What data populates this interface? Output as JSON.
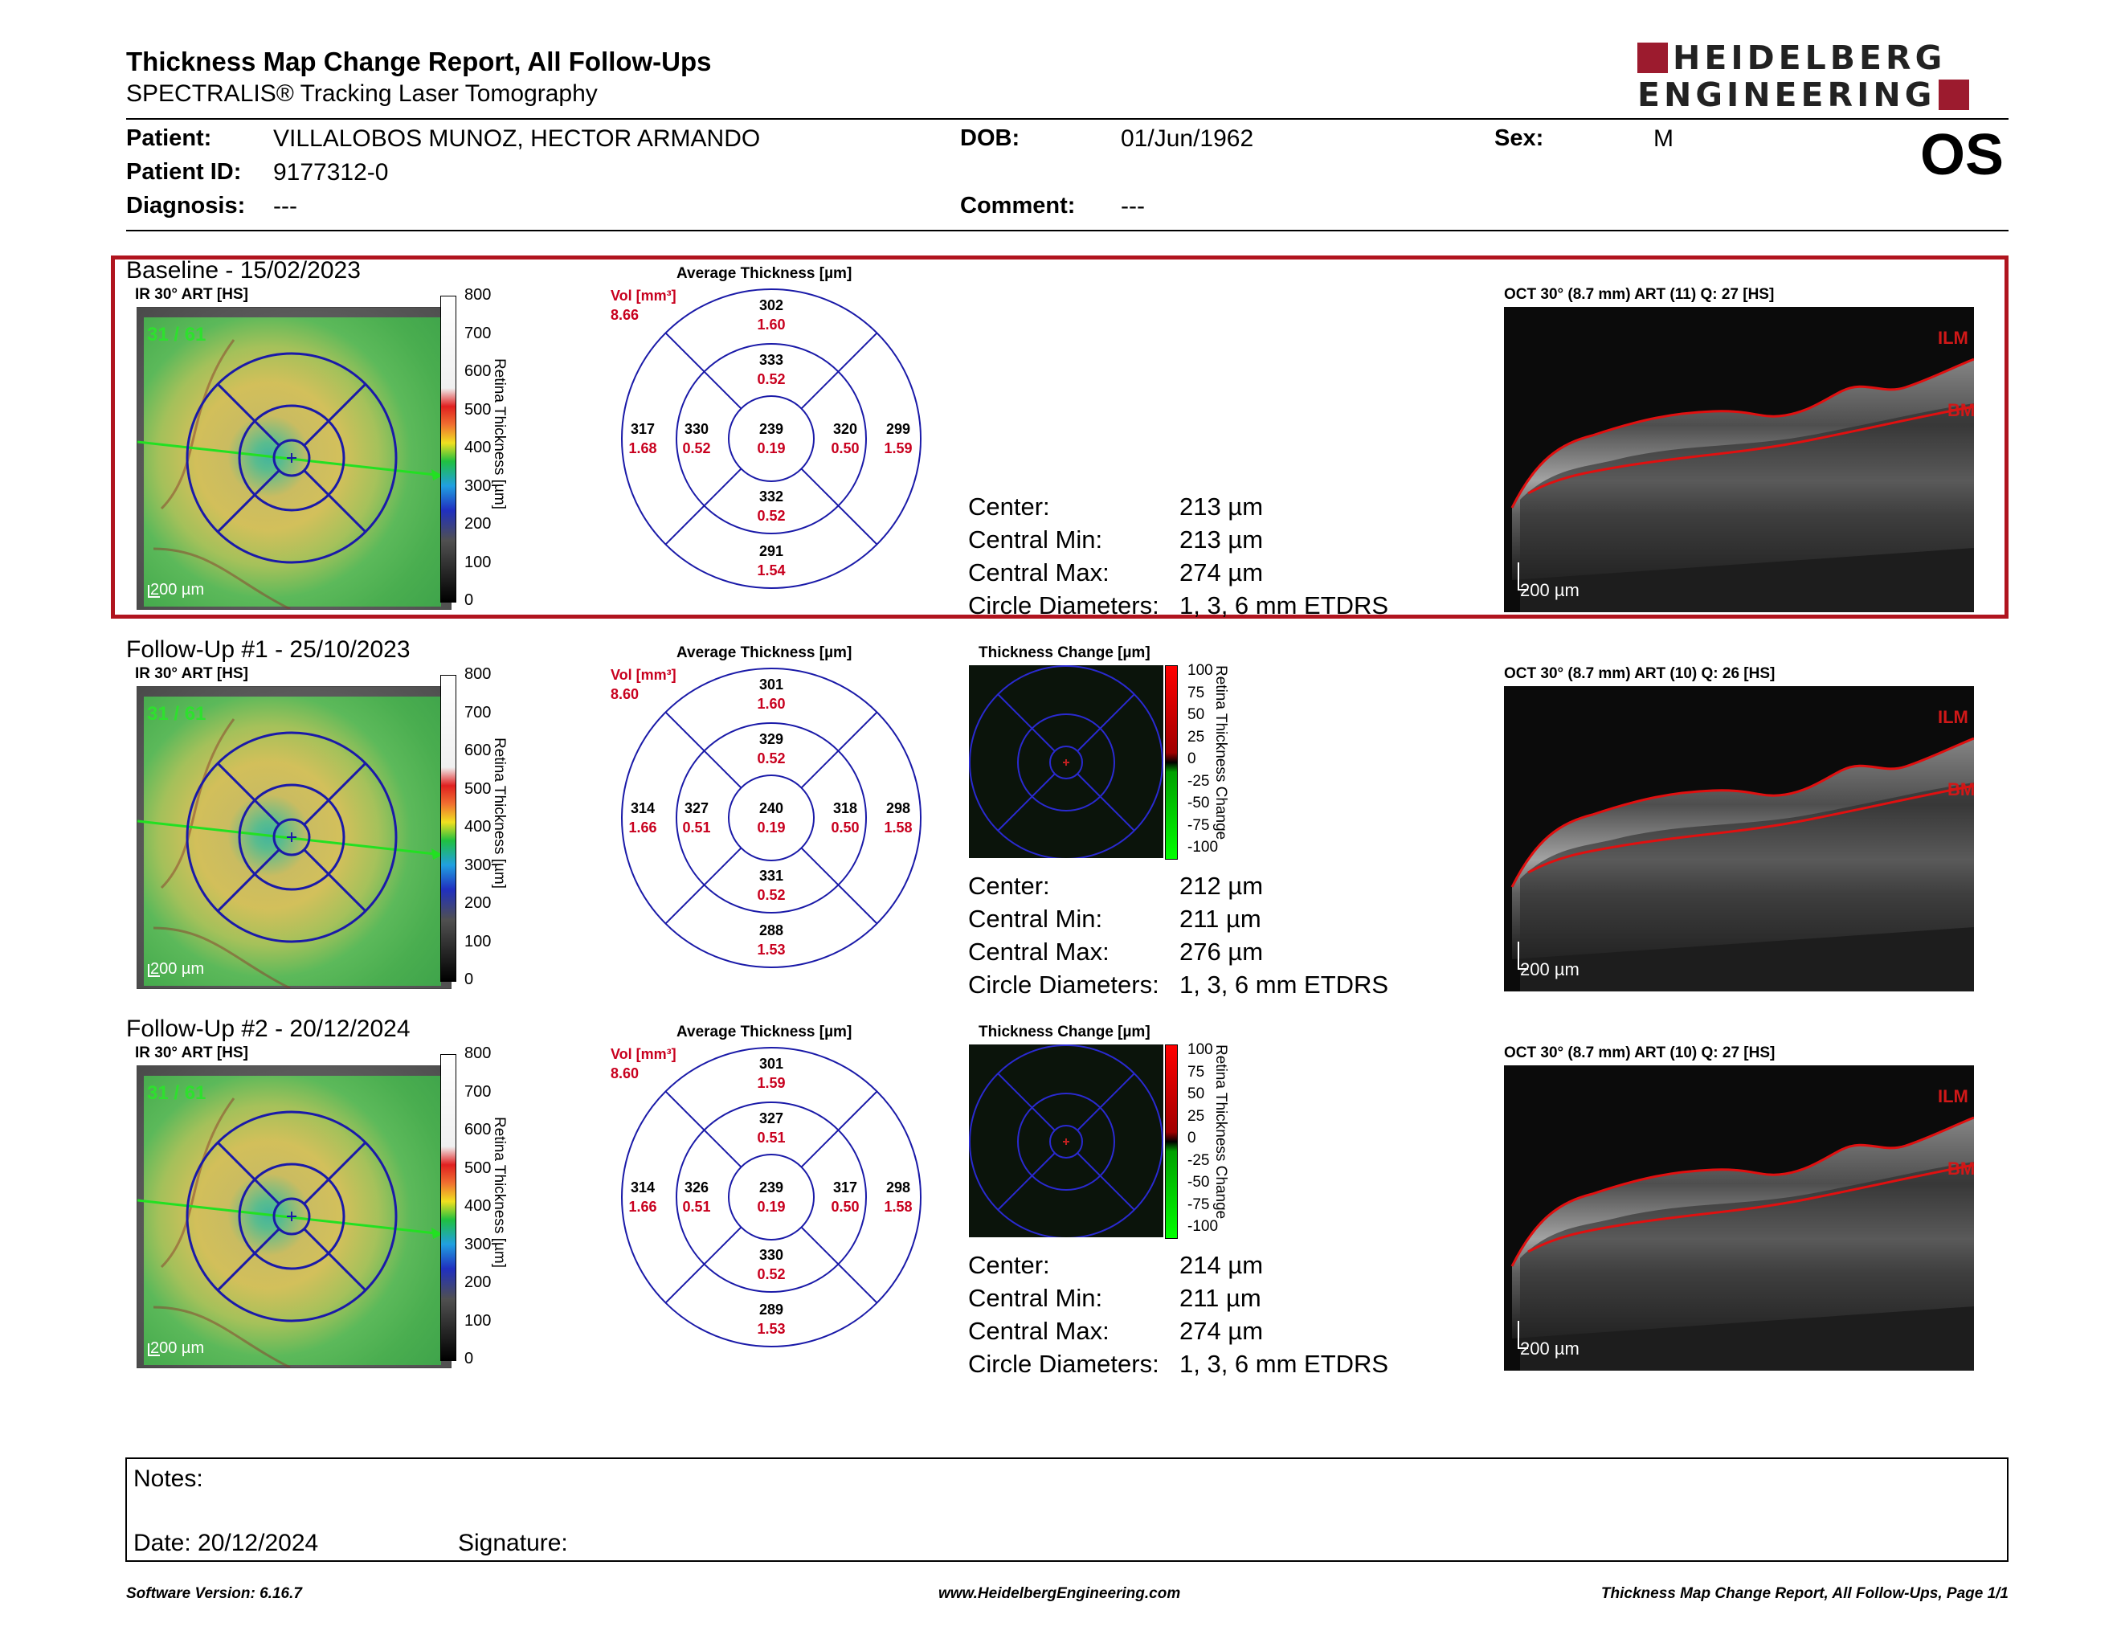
{
  "header": {
    "title": "Thickness Map Change Report, All Follow-Ups",
    "subtitle": "SPECTRALIS® Tracking Laser Tomography",
    "logo_line1": "HEIDELBERG",
    "logo_line2": "ENGINEERING",
    "eye": "OS"
  },
  "patient": {
    "patient_label": "Patient:",
    "patient_value": "VILLALOBOS MUNOZ, HECTOR ARMANDO",
    "dob_label": "DOB:",
    "dob_value": "01/Jun/1962",
    "sex_label": "Sex:",
    "sex_value": "M",
    "id_label": "Patient ID:",
    "id_value": "9177312-0",
    "diagnosis_label": "Diagnosis:",
    "diagnosis_value": "---",
    "comment_label": "Comment:",
    "comment_value": "---"
  },
  "common": {
    "ir_label": "IR 30° ART [HS]",
    "fixation": "31 / 61",
    "scale": "200 µm",
    "cbar_ticks": [
      "800",
      "700",
      "600",
      "500",
      "400",
      "300",
      "200",
      "100",
      "0"
    ],
    "cbar_label": "Retina Thickness [µm]",
    "avg_title": "Average Thickness [µm]",
    "vol_label": "Vol [mm³]",
    "change_title": "Thickness Change [µm]",
    "change_ticks": [
      "100",
      "75",
      "50",
      "25",
      "0",
      "-25",
      "-50",
      "-75",
      "-100"
    ],
    "change_label": "Retina Thickness Change",
    "ilm": "ILM",
    "bm": "BM",
    "stat_labels": [
      "Center:",
      "Central Min:",
      "Central Max:",
      "Circle Diameters:"
    ],
    "circle_diameters": "1, 3, 6 mm ETDRS"
  },
  "exams": [
    {
      "title": "Baseline - 15/02/2023",
      "oct_label": "OCT 30° (8.7 mm) ART (11) Q: 27 [HS]",
      "vol_total": "8.66",
      "sectors": {
        "outer_sup": [
          "302",
          "1.60"
        ],
        "inner_sup": [
          "333",
          "0.52"
        ],
        "outer_temp": [
          "317",
          "1.68"
        ],
        "inner_temp": [
          "330",
          "0.52"
        ],
        "center": [
          "239",
          "0.19"
        ],
        "inner_nasal": [
          "320",
          "0.50"
        ],
        "outer_nasal": [
          "299",
          "1.59"
        ],
        "inner_inf": [
          "332",
          "0.52"
        ],
        "outer_inf": [
          "291",
          "1.54"
        ]
      },
      "center": "213 µm",
      "central_min": "213 µm",
      "central_max": "274 µm"
    },
    {
      "title": "Follow-Up #1 - 25/10/2023",
      "oct_label": "OCT 30° (8.7 mm) ART (10) Q: 26 [HS]",
      "vol_total": "8.60",
      "sectors": {
        "outer_sup": [
          "301",
          "1.60"
        ],
        "inner_sup": [
          "329",
          "0.52"
        ],
        "outer_temp": [
          "314",
          "1.66"
        ],
        "inner_temp": [
          "327",
          "0.51"
        ],
        "center": [
          "240",
          "0.19"
        ],
        "inner_nasal": [
          "318",
          "0.50"
        ],
        "outer_nasal": [
          "298",
          "1.58"
        ],
        "inner_inf": [
          "331",
          "0.52"
        ],
        "outer_inf": [
          "288",
          "1.53"
        ]
      },
      "center": "212 µm",
      "central_min": "211 µm",
      "central_max": "276 µm"
    },
    {
      "title": "Follow-Up #2 - 20/12/2024",
      "oct_label": "OCT 30° (8.7 mm) ART (10) Q: 27 [HS]",
      "vol_total": "8.60",
      "sectors": {
        "outer_sup": [
          "301",
          "1.59"
        ],
        "inner_sup": [
          "327",
          "0.51"
        ],
        "outer_temp": [
          "314",
          "1.66"
        ],
        "inner_temp": [
          "326",
          "0.51"
        ],
        "center": [
          "239",
          "0.19"
        ],
        "inner_nasal": [
          "317",
          "0.50"
        ],
        "outer_nasal": [
          "298",
          "1.58"
        ],
        "inner_inf": [
          "330",
          "0.52"
        ],
        "outer_inf": [
          "289",
          "1.53"
        ]
      },
      "center": "214 µm",
      "central_min": "211 µm",
      "central_max": "274 µm"
    }
  ],
  "notes": {
    "notes_label": "Notes:",
    "date_label": "Date: 20/12/2024",
    "signature_label": "Signature:"
  },
  "footer": {
    "software": "Software Version: 6.16.7",
    "website": "www.HeidelbergEngineering.com",
    "page": "Thickness Map Change Report, All Follow-Ups, Page 1/1"
  },
  "colors": {
    "accent": "#b0141e",
    "logo": "#9c1b2e",
    "grid": "#1a1aa8",
    "value_red": "#c8001e"
  }
}
